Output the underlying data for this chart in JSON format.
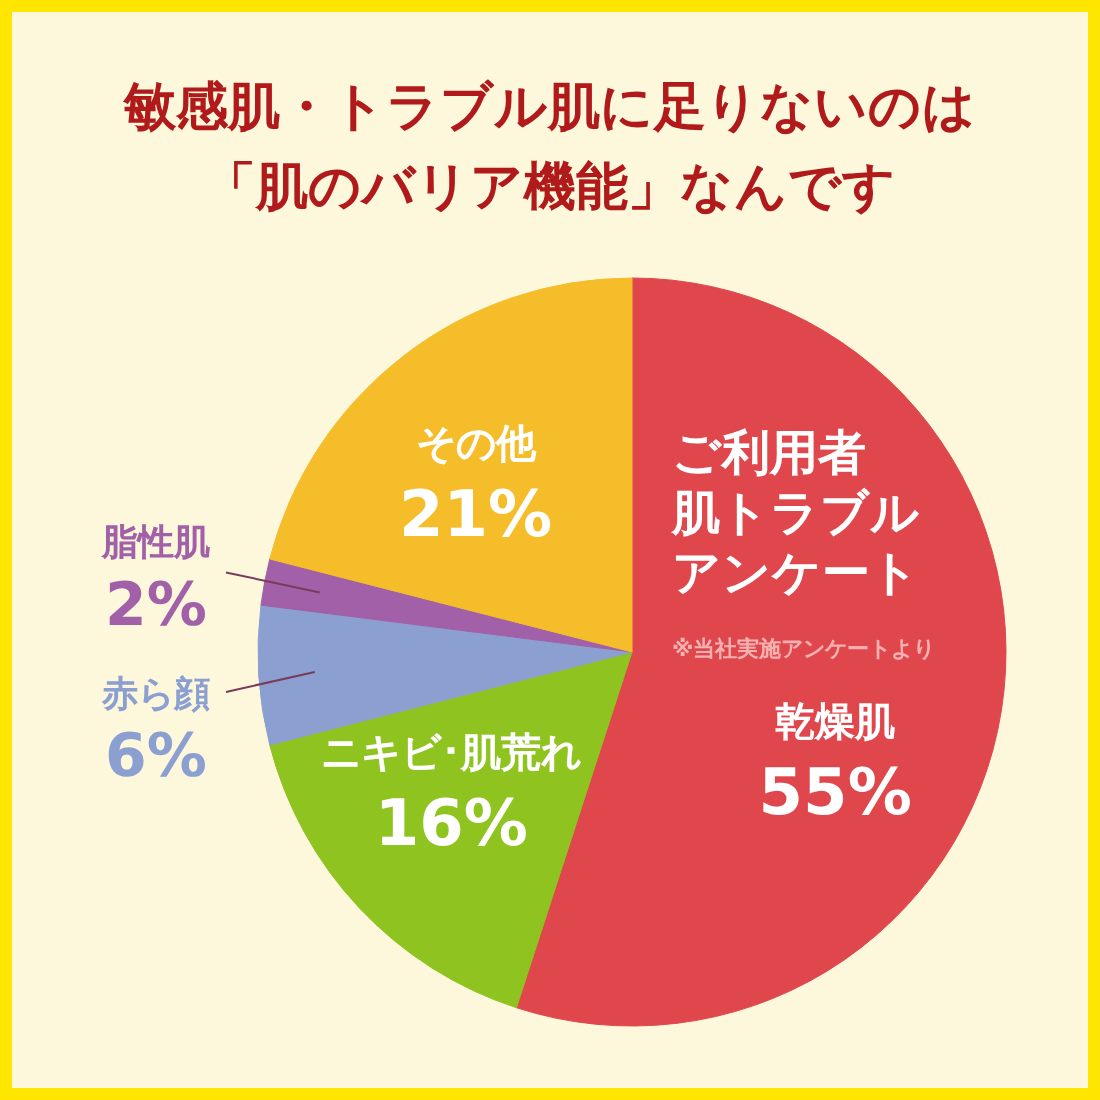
{
  "chart_data": {
    "type": "pie",
    "title": "敏感肌・トラブル肌に足りないのは「肌のバリア機能」なんです",
    "categories": [
      "乾燥肌",
      "ニキビ･肌荒れ",
      "赤ら顔",
      "脂性肌",
      "その他"
    ],
    "values": [
      55,
      16,
      6,
      2,
      21
    ],
    "value_labels": [
      "55%",
      "16%",
      "6%",
      "2%",
      "21%"
    ],
    "colors": [
      "#e0474c",
      "#8fc31f",
      "#8c9fd1",
      "#a160a8",
      "#f5bd2a"
    ],
    "annotations": [
      "ご利用者",
      "肌トラブル",
      "アンケート",
      "※当社実施アンケートより"
    ]
  }
}
